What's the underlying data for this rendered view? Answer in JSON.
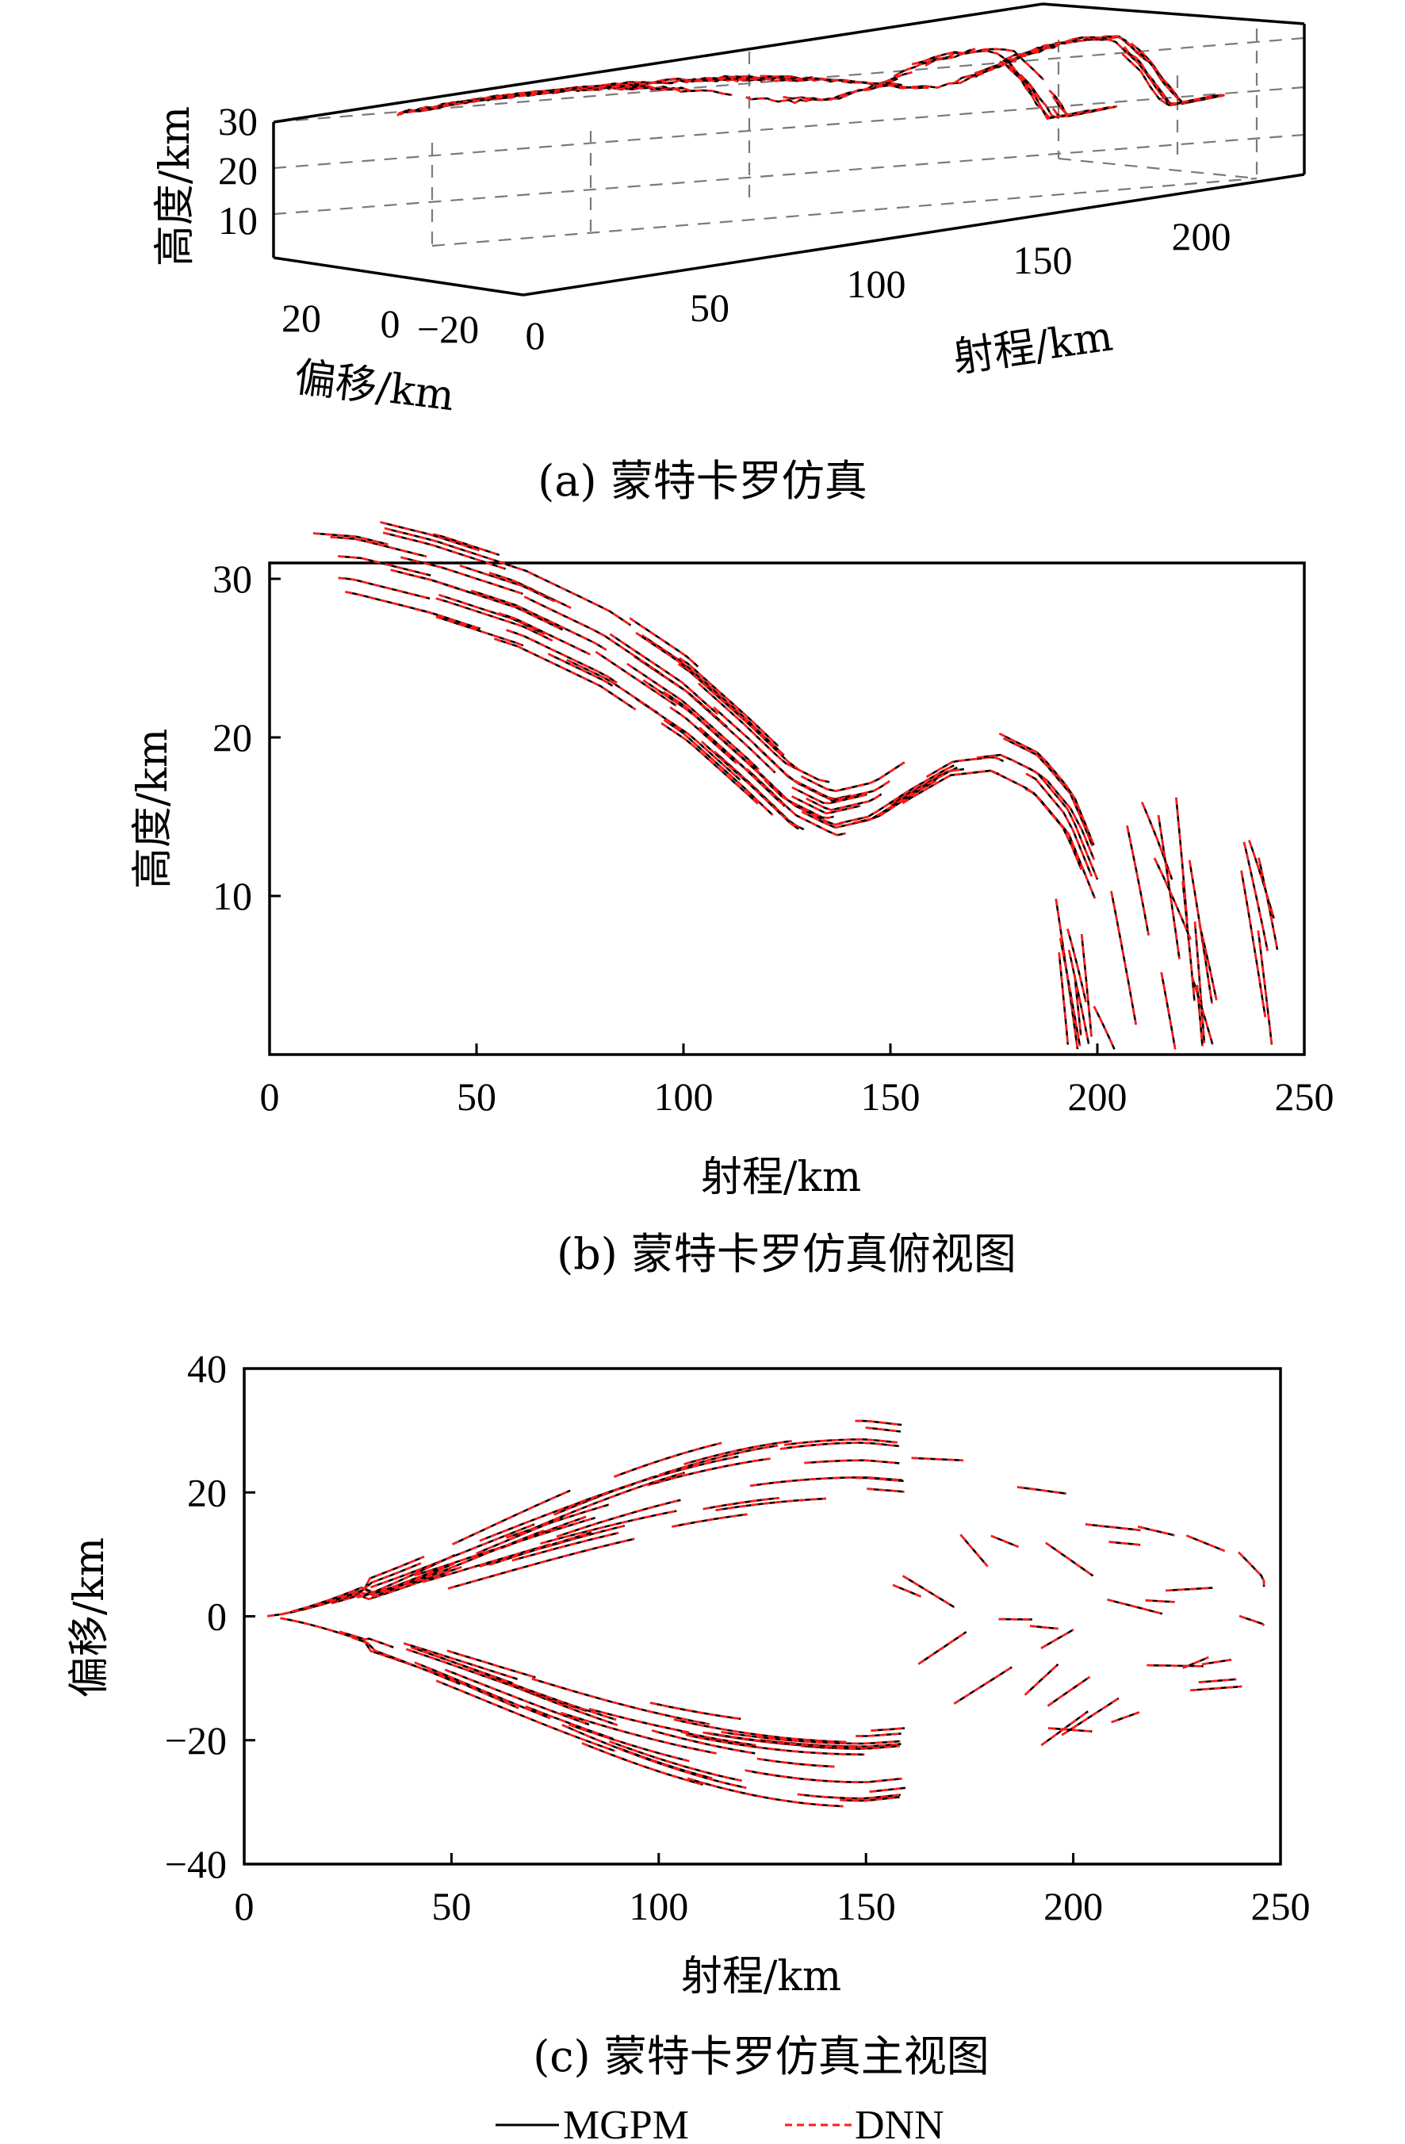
{
  "legend": {
    "mgpm": "MGPM",
    "dnn": "DNN"
  },
  "colors": {
    "mgpm": "#000000",
    "dnn": "#ff1a1a",
    "grid": "#7a7a7a"
  },
  "chart_data": [
    {
      "type": "line",
      "panel": "3d",
      "caption": "(a) 蒙特卡罗仿真",
      "zlabel": "高度/km",
      "ylabel": "偏移/km",
      "xlabel": "射程/km",
      "z_ticks": [
        "30",
        "20",
        "10"
      ],
      "y_ticks": [
        "20",
        "0",
        "−20"
      ],
      "x_ticks": [
        "0",
        "50",
        "100",
        "150",
        "200"
      ],
      "series_names": [
        "MGPM",
        "DNN"
      ]
    },
    {
      "type": "line",
      "panel": "top",
      "caption": "(b) 蒙特卡罗仿真俯视图",
      "xlabel": "射程/km",
      "ylabel": "高度/km",
      "xlim": [
        0,
        250
      ],
      "ylim": [
        0,
        31
      ],
      "x_ticks": [
        "0",
        "50",
        "100",
        "150",
        "200",
        "250"
      ],
      "y_ticks": [
        "30",
        "20",
        "10"
      ],
      "series_names": [
        "MGPM",
        "DNN"
      ]
    },
    {
      "type": "line",
      "panel": "front",
      "caption": "(c) 蒙特卡罗仿真主视图",
      "xlabel": "射程/km",
      "ylabel": "偏移/km",
      "xlim": [
        0,
        250
      ],
      "ylim": [
        -40,
        40
      ],
      "x_ticks": [
        "0",
        "50",
        "100",
        "150",
        "200",
        "250"
      ],
      "y_ticks": [
        "40",
        "20",
        "0",
        "−20",
        "−40"
      ],
      "series_names": [
        "MGPM",
        "DNN"
      ]
    }
  ]
}
